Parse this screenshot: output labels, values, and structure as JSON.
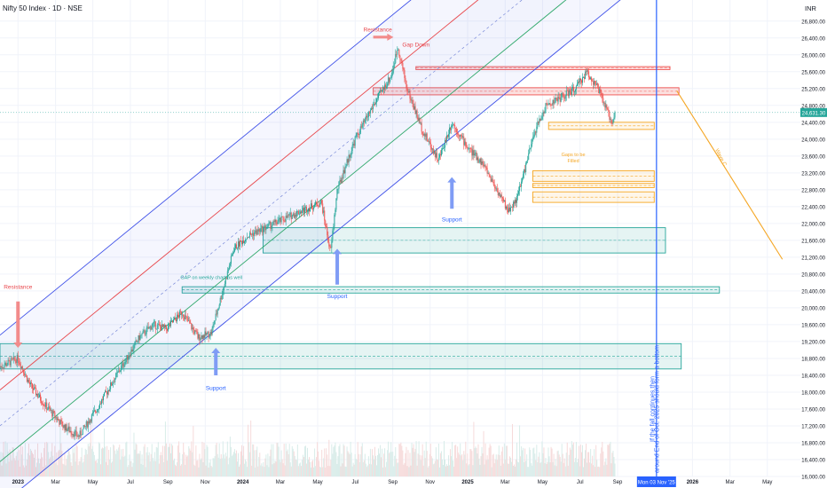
{
  "header": {
    "title": "Nifty 50 Index · 1D · NSE",
    "currency": "INR"
  },
  "colors": {
    "bull": "#26a69a",
    "bear": "#ef5350",
    "channel_blue": "#3f51e8",
    "channel_red": "#e8484d",
    "channel_green": "#2fa86b",
    "support_zone": "#26a69a",
    "resistance_zone": "#ef5350",
    "gap_zone": "#f5a623",
    "vertical_line": "#2962ff",
    "wave_line": "#f5a623",
    "arrow_red": "#f28b8b",
    "arrow_blue": "#7f9cf5"
  },
  "chart_data": {
    "type": "candlestick",
    "title": "Nifty 50 Index · 1D · NSE",
    "y_axis": {
      "unit": "INR",
      "range": [
        16000,
        27300
      ],
      "ticks": [
        "26,800.00",
        "26,400.00",
        "26,000.00",
        "25,600.00",
        "25,200.00",
        "24,800.00",
        "24,400.00",
        "24,000.00",
        "23,600.00",
        "23,200.00",
        "22,800.00",
        "22,400.00",
        "22,000.00",
        "21,600.00",
        "21,200.00",
        "20,800.00",
        "20,400.00",
        "20,000.00",
        "19,600.00",
        "19,200.00",
        "18,800.00",
        "18,400.00",
        "18,000.00",
        "17,600.00",
        "17,200.00",
        "16,800.00",
        "16,400.00",
        "16,000.00"
      ],
      "last_price_label": "24,631.30",
      "last_price": 24631.3
    },
    "x_axis": {
      "ticks": [
        {
          "label": "2023",
          "t": 2023.0
        },
        {
          "label": "Mar",
          "t": 2023.167
        },
        {
          "label": "May",
          "t": 2023.333
        },
        {
          "label": "Jul",
          "t": 2023.5
        },
        {
          "label": "Sep",
          "t": 2023.667
        },
        {
          "label": "Nov",
          "t": 2023.833
        },
        {
          "label": "2024",
          "t": 2024.0
        },
        {
          "label": "Mar",
          "t": 2024.167
        },
        {
          "label": "May",
          "t": 2024.333
        },
        {
          "label": "Jul",
          "t": 2024.5
        },
        {
          "label": "Sep",
          "t": 2024.667
        },
        {
          "label": "Nov",
          "t": 2024.833
        },
        {
          "label": "2025",
          "t": 2025.0
        },
        {
          "label": "Mar",
          "t": 2025.167
        },
        {
          "label": "May",
          "t": 2025.333
        },
        {
          "label": "Jul",
          "t": 2025.5
        },
        {
          "label": "Sep",
          "t": 2025.667
        },
        {
          "label": "2026",
          "t": 2026.0
        },
        {
          "label": "Mar",
          "t": 2026.167
        },
        {
          "label": "May",
          "t": 2026.333
        }
      ],
      "marker_label": "Mon 03 Nov '25",
      "marker_t": 2025.84
    },
    "price_anchors": [
      [
        2022.92,
        18600
      ],
      [
        2023.0,
        18800
      ],
      [
        2023.05,
        18200
      ],
      [
        2023.12,
        17700
      ],
      [
        2023.2,
        17200
      ],
      [
        2023.27,
        16950
      ],
      [
        2023.35,
        17600
      ],
      [
        2023.45,
        18500
      ],
      [
        2023.54,
        19300
      ],
      [
        2023.6,
        19600
      ],
      [
        2023.66,
        19500
      ],
      [
        2023.73,
        19900
      ],
      [
        2023.8,
        19300
      ],
      [
        2023.86,
        19400
      ],
      [
        2023.9,
        20200
      ],
      [
        2023.96,
        21400
      ],
      [
        2024.02,
        21700
      ],
      [
        2024.1,
        21900
      ],
      [
        2024.18,
        22100
      ],
      [
        2024.26,
        22300
      ],
      [
        2024.35,
        22500
      ],
      [
        2024.39,
        21300
      ],
      [
        2024.42,
        22800
      ],
      [
        2024.5,
        24000
      ],
      [
        2024.58,
        24800
      ],
      [
        2024.66,
        25500
      ],
      [
        2024.69,
        26200
      ],
      [
        2024.73,
        25200
      ],
      [
        2024.8,
        24200
      ],
      [
        2024.87,
        23500
      ],
      [
        2024.93,
        24400
      ],
      [
        2025.0,
        23800
      ],
      [
        2025.07,
        23400
      ],
      [
        2025.13,
        22800
      ],
      [
        2025.18,
        22300
      ],
      [
        2025.22,
        22600
      ],
      [
        2025.26,
        23400
      ],
      [
        2025.3,
        24200
      ],
      [
        2025.35,
        24800
      ],
      [
        2025.42,
        25000
      ],
      [
        2025.48,
        25200
      ],
      [
        2025.53,
        25600
      ],
      [
        2025.58,
        25200
      ],
      [
        2025.61,
        24800
      ],
      [
        2025.64,
        24400
      ],
      [
        2025.655,
        24631
      ]
    ],
    "channel": {
      "slope_per_year": 4350,
      "anchor_t": 2023.0,
      "lines": [
        {
          "name": "upper_blue",
          "base": 19700
        },
        {
          "name": "red",
          "base": 18400
        },
        {
          "name": "dashed_mid",
          "base": 17550
        },
        {
          "name": "green",
          "base": 16700
        },
        {
          "name": "lower_blue",
          "base": 15650
        }
      ]
    },
    "zones": [
      {
        "kind": "support",
        "t0": 2022.92,
        "t1": 2025.95,
        "y0": 18550,
        "y1": 19150
      },
      {
        "kind": "support",
        "t0": 2023.73,
        "t1": 2026.12,
        "y0": 20350,
        "y1": 20500
      },
      {
        "kind": "support",
        "t0": 2024.09,
        "t1": 2025.88,
        "y0": 21300,
        "y1": 21900
      },
      {
        "kind": "resistance",
        "t0": 2024.77,
        "t1": 2025.9,
        "y0": 25650,
        "y1": 25720
      },
      {
        "kind": "resistance",
        "t0": 2024.58,
        "t1": 2025.94,
        "y0": 25050,
        "y1": 25220
      },
      {
        "kind": "gap",
        "t0": 2025.36,
        "t1": 2025.83,
        "y0": 24230,
        "y1": 24400
      },
      {
        "kind": "gap",
        "t0": 2025.29,
        "t1": 2025.83,
        "y0": 23000,
        "y1": 23250
      },
      {
        "kind": "gap",
        "t0": 2025.29,
        "t1": 2025.83,
        "y0": 22850,
        "y1": 22950
      },
      {
        "kind": "gap",
        "t0": 2025.29,
        "t1": 2025.83,
        "y0": 22500,
        "y1": 22750
      }
    ],
    "wave_line": {
      "t0": 2025.93,
      "y0": 25150,
      "t1": 2026.4,
      "y1": 21150
    },
    "annotations": [
      {
        "text": "Resistance",
        "t": 2023.0,
        "y": 20450,
        "kind": "red"
      },
      {
        "text": "Resistance",
        "t": 2024.6,
        "y": 26550,
        "kind": "red"
      },
      {
        "text": "Gap Down",
        "t": 2024.77,
        "y": 26200,
        "kind": "red"
      },
      {
        "text": "GAP on weekly chart as well",
        "t": 2023.86,
        "y": 20680,
        "kind": "green"
      },
      {
        "text": "Support",
        "t": 2024.42,
        "y": 20230,
        "kind": "blue"
      },
      {
        "text": "Support",
        "t": 2023.88,
        "y": 18050,
        "kind": "blue"
      },
      {
        "text": "Support",
        "t": 2024.93,
        "y": 22050,
        "kind": "blue"
      },
      {
        "text": "Gaps to be",
        "t": 2025.47,
        "y": 23600,
        "kind": "orange"
      },
      {
        "text": "Filled",
        "t": 2025.47,
        "y": 23450,
        "kind": "orange"
      },
      {
        "text": "Wave C",
        "t": 2026.12,
        "y": 23550,
        "kind": "orange-rot"
      },
      {
        "text": "If the fall continues then",
        "t": 2025.83,
        "y": 17600,
        "kind": "vertical"
      },
      {
        "text": "around End of Oct. 2025 should form a bottom",
        "t": 2025.85,
        "y": 17600,
        "kind": "vertical"
      }
    ]
  }
}
